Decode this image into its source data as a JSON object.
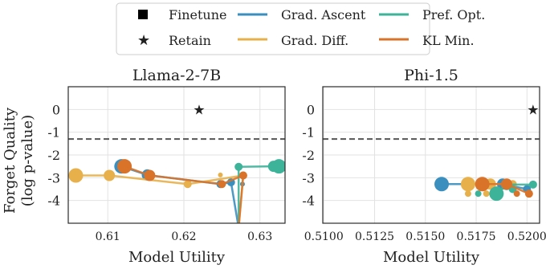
{
  "figure": {
    "ylabel_line1": "Forget Quality",
    "ylabel_line2": "(log p-value)"
  },
  "legend": {
    "entries": [
      {
        "label": "Finetune",
        "marker": "square"
      },
      {
        "label": "Retain",
        "marker": "star"
      },
      {
        "label": "Grad. Ascent",
        "color": "#3b8fbf"
      },
      {
        "label": "Grad. Diff.",
        "color": "#e8b04a"
      },
      {
        "label": "Pref. Opt.",
        "color": "#3db39a"
      },
      {
        "label": "KL Min.",
        "color": "#d9732a"
      }
    ]
  },
  "chart_data": [
    {
      "type": "scatter",
      "title": "Llama-2-7B",
      "xlabel": "Model Utility",
      "ylabel": "Forget Quality (log p-value)",
      "xlim": [
        0.6048,
        0.6333
      ],
      "ylim": [
        -5.0,
        1.0
      ],
      "xticks": [
        0.61,
        0.62,
        0.63
      ],
      "xtick_labels": [
        "0.61",
        "0.62",
        "0.63"
      ],
      "yticks": [
        0,
        -1,
        -2,
        -3,
        -4
      ],
      "ytick_labels": [
        "0",
        "-1",
        "-2",
        "-3",
        "-4"
      ],
      "threshold_y": -1.3,
      "grid": true,
      "retain": {
        "x": 0.622,
        "y": 0
      },
      "series": [
        {
          "name": "Grad. Ascent",
          "color": "#3b8fbf",
          "points": [
            [
              0.6118,
              -2.5
            ],
            [
              0.6152,
              -2.88
            ],
            [
              0.6248,
              -3.28
            ],
            [
              0.6262,
              -3.2
            ],
            [
              0.6272,
              -5.2
            ]
          ],
          "sizes": [
            9,
            7,
            5,
            5,
            3
          ],
          "extra": [
            [
              0.6277,
              -3.28,
              3
            ]
          ]
        },
        {
          "name": "Grad. Diff.",
          "color": "#e8b04a",
          "points": [
            [
              0.6058,
              -2.9
            ],
            [
              0.6102,
              -2.9
            ],
            [
              0.6205,
              -3.28
            ],
            [
              0.6278,
              -2.9
            ],
            [
              0.6272,
              -5.2
            ]
          ],
          "sizes": [
            9,
            7,
            5,
            5,
            3
          ],
          "extra": [
            [
              0.6248,
              -2.88,
              3
            ]
          ]
        },
        {
          "name": "Pref. Opt.",
          "color": "#3db39a",
          "points": [
            [
              0.6325,
              -2.5
            ],
            [
              0.6318,
              -2.5
            ],
            [
              0.6272,
              -2.52
            ],
            [
              0.6272,
              -5.2
            ]
          ],
          "sizes": [
            9,
            7,
            5,
            3
          ]
        },
        {
          "name": "KL Min.",
          "color": "#d9732a",
          "points": [
            [
              0.6122,
              -2.5
            ],
            [
              0.6155,
              -2.9
            ],
            [
              0.625,
              -3.28
            ],
            [
              0.6278,
              -2.9
            ],
            [
              0.6272,
              -5.2
            ]
          ],
          "sizes": [
            9,
            7,
            5,
            5,
            3
          ]
        }
      ]
    },
    {
      "type": "scatter",
      "title": "Phi-1.5",
      "xlabel": "Model Utility",
      "ylabel": "",
      "xlim": [
        0.50995,
        0.52062
      ],
      "ylim": [
        -5.0,
        1.0
      ],
      "xticks": [
        0.51,
        0.5125,
        0.515,
        0.5175,
        0.52
      ],
      "xtick_labels": [
        "0.5100",
        "0.5125",
        "0.5150",
        "0.5175",
        "0.5200"
      ],
      "yticks": [
        0,
        -1,
        -2,
        -3,
        -4
      ],
      "ytick_labels": [
        "0",
        "-1",
        "-2",
        "-3",
        "-4"
      ],
      "threshold_y": -1.3,
      "grid": true,
      "retain": {
        "x": 0.5203,
        "y": 0
      },
      "series": [
        {
          "name": "Grad. Ascent",
          "color": "#3b8fbf",
          "points": [
            [
              0.5158,
              -3.28
            ],
            [
              0.5188,
              -3.28
            ],
            [
              0.52,
              -3.5
            ]
          ],
          "sizes": [
            9,
            7,
            5
          ]
        },
        {
          "name": "Grad. Diff.",
          "color": "#e8b04a",
          "points": [
            [
              0.5171,
              -3.28
            ],
            [
              0.5182,
              -3.28
            ],
            [
              0.5193,
              -3.28
            ]
          ],
          "sizes": [
            9,
            7,
            5
          ],
          "extra": [
            [
              0.5171,
              -3.7,
              4
            ],
            [
              0.518,
              -3.7,
              4
            ]
          ]
        },
        {
          "name": "Pref. Opt.",
          "color": "#3db39a",
          "points": [
            [
              0.5185,
              -3.7
            ],
            [
              0.519,
              -3.3
            ],
            [
              0.5203,
              -3.3
            ]
          ],
          "sizes": [
            9,
            7,
            5
          ],
          "extra": [
            [
              0.5176,
              -3.7,
              4
            ],
            [
              0.5193,
              -3.5,
              5
            ]
          ]
        },
        {
          "name": "KL Min.",
          "color": "#d9732a",
          "points": [
            [
              0.5178,
              -3.28
            ],
            [
              0.519,
              -3.28
            ],
            [
              0.5201,
              -3.7
            ]
          ],
          "sizes": [
            9,
            7,
            5
          ],
          "extra": [
            [
              0.5195,
              -3.7,
              4
            ]
          ]
        }
      ]
    }
  ]
}
